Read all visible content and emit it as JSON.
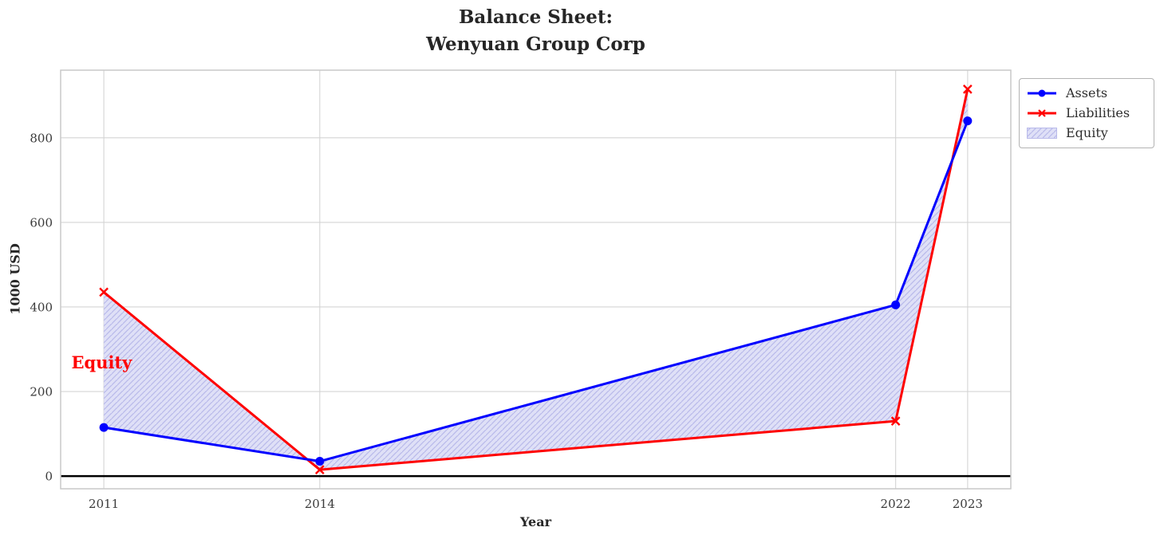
{
  "figure": {
    "title": "Balance Sheet:\nWenyuan Group Corp",
    "xlabel": "Year",
    "ylabel": "1000 USD"
  },
  "chart_data": {
    "type": "line",
    "title": "Balance Sheet:\nWenyuan Group Corp",
    "xlabel": "Year",
    "ylabel": "1000 USD",
    "x": [
      2011,
      2014,
      2022,
      2023
    ],
    "series": [
      {
        "name": "Assets",
        "values": [
          115,
          35,
          405,
          840
        ],
        "color": "#0000ff",
        "marker": "circle",
        "linewidth": 3
      },
      {
        "name": "Liabilities",
        "values": [
          435,
          15,
          130,
          915
        ],
        "color": "#ff0000",
        "marker": "x",
        "linewidth": 3
      }
    ],
    "fill_between": {
      "label": "Equity",
      "between": [
        "Assets",
        "Liabilities"
      ],
      "facecolor": "#dfe0f7",
      "hatch": "//",
      "hatch_color": "#b9baea"
    },
    "annotation": {
      "text": "Equity",
      "x": 2010.55,
      "y": 253,
      "color": "#ff0000"
    },
    "axhline": {
      "y": 0,
      "color": "#000000",
      "linewidth": 2.5
    },
    "xticks": [
      2011,
      2014,
      2022,
      2023
    ],
    "yticks": [
      0,
      200,
      400,
      600,
      800
    ],
    "xlim": [
      2010.4,
      2023.6
    ],
    "ylim": [
      -30,
      960
    ],
    "grid": true,
    "grid_color": "#d4d4d4",
    "spine_color": "#c9c9c9",
    "tick_color": "#3a3a3a",
    "legend_position": "outside-upper-right"
  },
  "legend": {
    "items": [
      {
        "label": "Assets"
      },
      {
        "label": "Liabilities"
      },
      {
        "label": "Equity"
      }
    ]
  }
}
